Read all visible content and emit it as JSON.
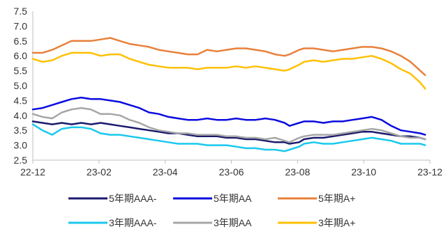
{
  "chart_data": {
    "type": "line",
    "title": "",
    "xlabel": "",
    "ylabel": "",
    "ylim": [
      2.5,
      7.5
    ],
    "yticks": [
      "2.5",
      "3.0",
      "3.5",
      "4.0",
      "4.5",
      "5.0",
      "5.5",
      "6.0",
      "6.5",
      "7.0",
      "7.5"
    ],
    "xticks": [
      "22-12",
      "23-02",
      "23-04",
      "23-06",
      "23-08",
      "23-10",
      "23-12"
    ],
    "grid": false,
    "legend_position": "bottom",
    "series": [
      {
        "name": "5年期AAA-",
        "color": "#1a1a6e",
        "points": [
          [
            0,
            3.8
          ],
          [
            2,
            3.75
          ],
          [
            4,
            3.7
          ],
          [
            6,
            3.75
          ],
          [
            8,
            3.7
          ],
          [
            10,
            3.75
          ],
          [
            12,
            3.7
          ],
          [
            14,
            3.75
          ],
          [
            16,
            3.7
          ],
          [
            18,
            3.65
          ],
          [
            20,
            3.6
          ],
          [
            22,
            3.55
          ],
          [
            24,
            3.5
          ],
          [
            26,
            3.45
          ],
          [
            28,
            3.4
          ],
          [
            30,
            3.4
          ],
          [
            32,
            3.35
          ],
          [
            34,
            3.3
          ],
          [
            36,
            3.3
          ],
          [
            38,
            3.3
          ],
          [
            40,
            3.25
          ],
          [
            42,
            3.25
          ],
          [
            44,
            3.2
          ],
          [
            46,
            3.2
          ],
          [
            48,
            3.15
          ],
          [
            50,
            3.1
          ],
          [
            52,
            3.1
          ],
          [
            53,
            3.05
          ],
          [
            55,
            3.1
          ],
          [
            56,
            3.2
          ],
          [
            58,
            3.25
          ],
          [
            60,
            3.25
          ],
          [
            62,
            3.3
          ],
          [
            64,
            3.35
          ],
          [
            66,
            3.4
          ],
          [
            68,
            3.45
          ],
          [
            70,
            3.45
          ],
          [
            72,
            3.4
          ],
          [
            74,
            3.35
          ],
          [
            76,
            3.3
          ],
          [
            78,
            3.3
          ],
          [
            80,
            3.25
          ],
          [
            81,
            3.2
          ]
        ]
      },
      {
        "name": "5年期AA",
        "color": "#0a0ae0",
        "points": [
          [
            0,
            4.2
          ],
          [
            2,
            4.25
          ],
          [
            4,
            4.35
          ],
          [
            6,
            4.45
          ],
          [
            8,
            4.55
          ],
          [
            10,
            4.6
          ],
          [
            12,
            4.55
          ],
          [
            14,
            4.55
          ],
          [
            16,
            4.5
          ],
          [
            18,
            4.45
          ],
          [
            20,
            4.35
          ],
          [
            22,
            4.25
          ],
          [
            24,
            4.1
          ],
          [
            26,
            4.05
          ],
          [
            28,
            3.95
          ],
          [
            30,
            3.9
          ],
          [
            32,
            3.85
          ],
          [
            34,
            3.85
          ],
          [
            36,
            3.9
          ],
          [
            38,
            3.85
          ],
          [
            40,
            3.85
          ],
          [
            42,
            3.9
          ],
          [
            44,
            3.85
          ],
          [
            46,
            3.85
          ],
          [
            48,
            3.9
          ],
          [
            50,
            3.85
          ],
          [
            52,
            3.75
          ],
          [
            53,
            3.65
          ],
          [
            55,
            3.75
          ],
          [
            56,
            3.8
          ],
          [
            58,
            3.8
          ],
          [
            60,
            3.75
          ],
          [
            62,
            3.8
          ],
          [
            64,
            3.8
          ],
          [
            66,
            3.85
          ],
          [
            68,
            3.9
          ],
          [
            70,
            3.95
          ],
          [
            72,
            3.85
          ],
          [
            74,
            3.65
          ],
          [
            76,
            3.5
          ],
          [
            78,
            3.45
          ],
          [
            80,
            3.4
          ],
          [
            81,
            3.35
          ]
        ]
      },
      {
        "name": "5年期A+",
        "color": "#e8803a",
        "points": [
          [
            0,
            6.1
          ],
          [
            2,
            6.1
          ],
          [
            4,
            6.2
          ],
          [
            6,
            6.35
          ],
          [
            8,
            6.5
          ],
          [
            10,
            6.5
          ],
          [
            12,
            6.5
          ],
          [
            14,
            6.55
          ],
          [
            16,
            6.6
          ],
          [
            18,
            6.5
          ],
          [
            20,
            6.4
          ],
          [
            22,
            6.35
          ],
          [
            24,
            6.3
          ],
          [
            26,
            6.2
          ],
          [
            28,
            6.15
          ],
          [
            30,
            6.1
          ],
          [
            32,
            6.05
          ],
          [
            34,
            6.05
          ],
          [
            36,
            6.2
          ],
          [
            38,
            6.15
          ],
          [
            40,
            6.2
          ],
          [
            42,
            6.25
          ],
          [
            44,
            6.25
          ],
          [
            46,
            6.2
          ],
          [
            48,
            6.15
          ],
          [
            50,
            6.05
          ],
          [
            52,
            6.0
          ],
          [
            53,
            6.05
          ],
          [
            55,
            6.2
          ],
          [
            56,
            6.25
          ],
          [
            58,
            6.25
          ],
          [
            60,
            6.2
          ],
          [
            62,
            6.15
          ],
          [
            64,
            6.2
          ],
          [
            66,
            6.25
          ],
          [
            68,
            6.3
          ],
          [
            70,
            6.3
          ],
          [
            72,
            6.25
          ],
          [
            74,
            6.15
          ],
          [
            76,
            6.0
          ],
          [
            78,
            5.8
          ],
          [
            80,
            5.5
          ],
          [
            81,
            5.35
          ]
        ]
      },
      {
        "name": "3年期AAA-",
        "color": "#19c8ee",
        "points": [
          [
            0,
            3.7
          ],
          [
            2,
            3.5
          ],
          [
            4,
            3.35
          ],
          [
            6,
            3.55
          ],
          [
            8,
            3.6
          ],
          [
            10,
            3.6
          ],
          [
            12,
            3.55
          ],
          [
            14,
            3.4
          ],
          [
            16,
            3.35
          ],
          [
            18,
            3.35
          ],
          [
            20,
            3.3
          ],
          [
            22,
            3.25
          ],
          [
            24,
            3.2
          ],
          [
            26,
            3.15
          ],
          [
            28,
            3.1
          ],
          [
            30,
            3.05
          ],
          [
            32,
            3.05
          ],
          [
            34,
            3.05
          ],
          [
            36,
            3.0
          ],
          [
            38,
            3.0
          ],
          [
            40,
            3.0
          ],
          [
            42,
            2.95
          ],
          [
            44,
            2.9
          ],
          [
            46,
            2.9
          ],
          [
            48,
            2.85
          ],
          [
            50,
            2.85
          ],
          [
            52,
            2.8
          ],
          [
            53,
            2.85
          ],
          [
            55,
            2.95
          ],
          [
            56,
            3.05
          ],
          [
            58,
            3.1
          ],
          [
            60,
            3.05
          ],
          [
            62,
            3.05
          ],
          [
            64,
            3.1
          ],
          [
            66,
            3.15
          ],
          [
            68,
            3.2
          ],
          [
            70,
            3.25
          ],
          [
            72,
            3.2
          ],
          [
            74,
            3.15
          ],
          [
            76,
            3.05
          ],
          [
            78,
            3.05
          ],
          [
            80,
            3.05
          ],
          [
            81,
            3.0
          ]
        ]
      },
      {
        "name": "3年期AA",
        "color": "#a6a6a6",
        "points": [
          [
            0,
            4.05
          ],
          [
            2,
            3.95
          ],
          [
            4,
            3.9
          ],
          [
            6,
            4.1
          ],
          [
            8,
            4.2
          ],
          [
            10,
            4.25
          ],
          [
            12,
            4.2
          ],
          [
            14,
            4.05
          ],
          [
            16,
            4.05
          ],
          [
            18,
            4.0
          ],
          [
            20,
            3.85
          ],
          [
            22,
            3.75
          ],
          [
            24,
            3.6
          ],
          [
            26,
            3.5
          ],
          [
            28,
            3.45
          ],
          [
            30,
            3.4
          ],
          [
            32,
            3.4
          ],
          [
            34,
            3.35
          ],
          [
            36,
            3.35
          ],
          [
            38,
            3.35
          ],
          [
            40,
            3.3
          ],
          [
            42,
            3.3
          ],
          [
            44,
            3.25
          ],
          [
            46,
            3.25
          ],
          [
            48,
            3.2
          ],
          [
            50,
            3.25
          ],
          [
            52,
            3.15
          ],
          [
            53,
            3.1
          ],
          [
            55,
            3.25
          ],
          [
            56,
            3.3
          ],
          [
            58,
            3.35
          ],
          [
            60,
            3.35
          ],
          [
            62,
            3.35
          ],
          [
            64,
            3.4
          ],
          [
            66,
            3.45
          ],
          [
            68,
            3.5
          ],
          [
            70,
            3.55
          ],
          [
            72,
            3.5
          ],
          [
            74,
            3.4
          ],
          [
            76,
            3.3
          ],
          [
            78,
            3.25
          ],
          [
            80,
            3.25
          ],
          [
            81,
            3.2
          ]
        ]
      },
      {
        "name": "3年期A+",
        "color": "#ffc000",
        "points": [
          [
            0,
            5.9
          ],
          [
            2,
            5.8
          ],
          [
            4,
            5.85
          ],
          [
            6,
            6.0
          ],
          [
            8,
            6.1
          ],
          [
            10,
            6.1
          ],
          [
            12,
            6.1
          ],
          [
            14,
            6.0
          ],
          [
            16,
            6.05
          ],
          [
            18,
            6.05
          ],
          [
            20,
            5.9
          ],
          [
            22,
            5.8
          ],
          [
            24,
            5.7
          ],
          [
            26,
            5.65
          ],
          [
            28,
            5.6
          ],
          [
            30,
            5.6
          ],
          [
            32,
            5.6
          ],
          [
            34,
            5.55
          ],
          [
            36,
            5.6
          ],
          [
            38,
            5.6
          ],
          [
            40,
            5.6
          ],
          [
            42,
            5.65
          ],
          [
            44,
            5.6
          ],
          [
            46,
            5.65
          ],
          [
            48,
            5.6
          ],
          [
            50,
            5.55
          ],
          [
            52,
            5.5
          ],
          [
            53,
            5.55
          ],
          [
            55,
            5.7
          ],
          [
            56,
            5.8
          ],
          [
            58,
            5.85
          ],
          [
            60,
            5.8
          ],
          [
            62,
            5.85
          ],
          [
            64,
            5.9
          ],
          [
            66,
            5.9
          ],
          [
            68,
            5.95
          ],
          [
            70,
            6.0
          ],
          [
            72,
            5.9
          ],
          [
            74,
            5.75
          ],
          [
            76,
            5.55
          ],
          [
            78,
            5.4
          ],
          [
            80,
            5.1
          ],
          [
            81,
            4.9
          ]
        ]
      }
    ]
  }
}
